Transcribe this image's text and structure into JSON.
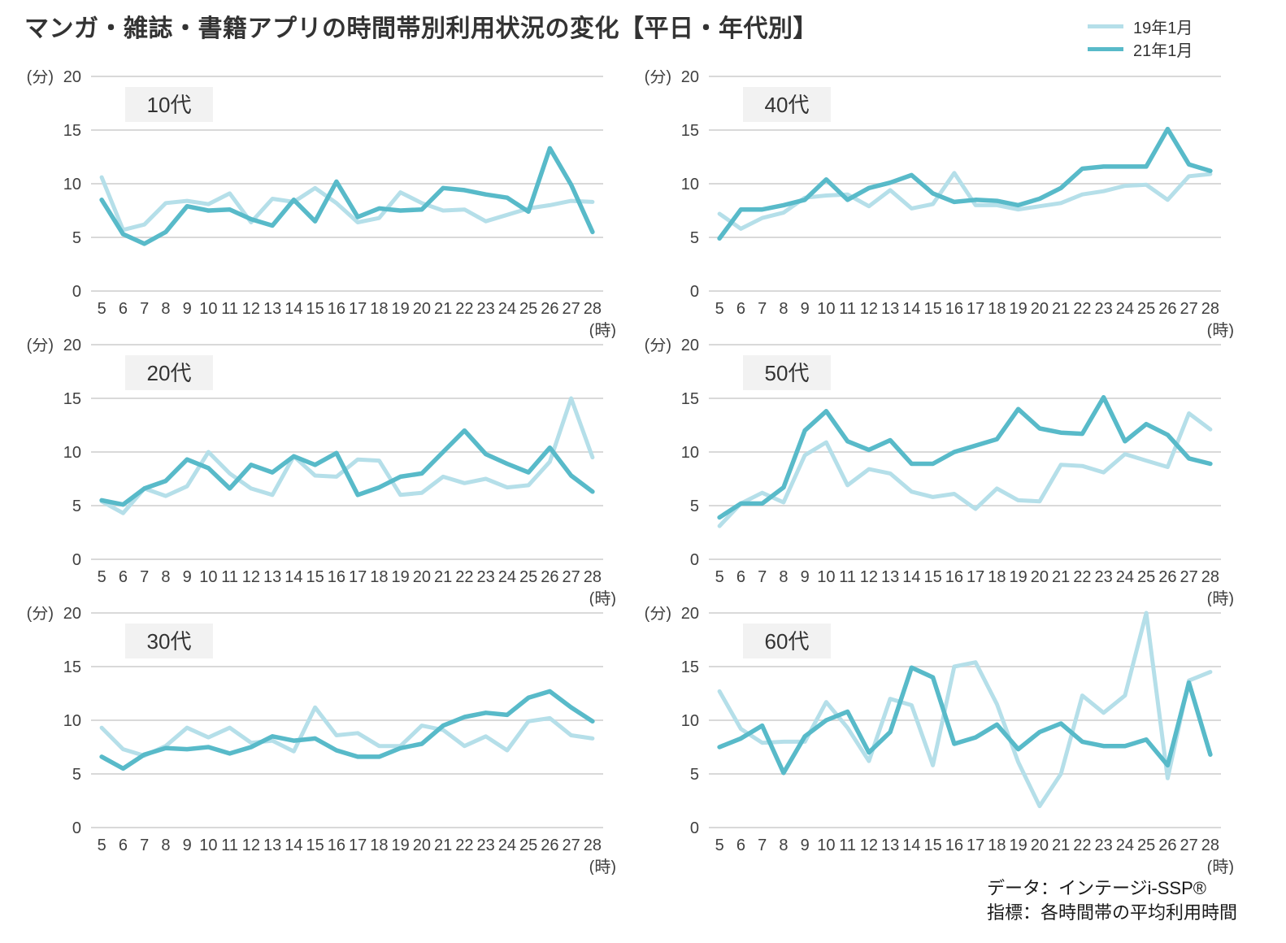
{
  "title": "マンガ・雑誌・書籍アプリの時間帯別利用状況の変化【平日・年代別】",
  "legend": [
    {
      "label": "19年1月",
      "color": "#b5dfe9"
    },
    {
      "label": "21年1月",
      "color": "#58bac9"
    }
  ],
  "footer": {
    "line1": "データ：インテージi-SSP®",
    "line2": "指標：各時間帯の平均利用時間"
  },
  "axes": {
    "y_unit": "(分)",
    "x_unit": "(時)",
    "ylim": [
      0,
      20
    ],
    "yticks": [
      0,
      5,
      10,
      15,
      20
    ],
    "x": [
      5,
      6,
      7,
      8,
      9,
      10,
      11,
      12,
      13,
      14,
      15,
      16,
      17,
      18,
      19,
      20,
      21,
      22,
      23,
      24,
      25,
      26,
      27,
      28
    ],
    "grid": true,
    "gridline_color": "#d9d9d9",
    "tick_color": "#404040"
  },
  "chart_data": [
    {
      "type": "line",
      "title": "10代",
      "x": [
        5,
        6,
        7,
        8,
        9,
        10,
        11,
        12,
        13,
        14,
        15,
        16,
        17,
        18,
        19,
        20,
        21,
        22,
        23,
        24,
        25,
        26,
        27,
        28
      ],
      "series": [
        {
          "name": "19年1月",
          "values": [
            10.6,
            5.7,
            6.2,
            8.2,
            8.4,
            8.1,
            9.1,
            6.4,
            8.6,
            8.3,
            9.6,
            8.2,
            6.4,
            6.8,
            9.2,
            8.2,
            7.5,
            7.6,
            6.5,
            7.1,
            7.7,
            8.0,
            8.4,
            8.3
          ]
        },
        {
          "name": "21年1月",
          "values": [
            8.5,
            5.3,
            4.4,
            5.5,
            7.9,
            7.5,
            7.6,
            6.7,
            6.1,
            8.5,
            6.5,
            10.2,
            6.9,
            7.7,
            7.5,
            7.6,
            9.6,
            9.4,
            9.0,
            8.7,
            7.4,
            13.3,
            9.9,
            5.5
          ]
        }
      ]
    },
    {
      "type": "line",
      "title": "40代",
      "x": [
        5,
        6,
        7,
        8,
        9,
        10,
        11,
        12,
        13,
        14,
        15,
        16,
        17,
        18,
        19,
        20,
        21,
        22,
        23,
        24,
        25,
        26,
        27,
        28
      ],
      "series": [
        {
          "name": "19年1月",
          "values": [
            7.2,
            5.8,
            6.8,
            7.3,
            8.7,
            8.9,
            9.0,
            7.9,
            9.4,
            7.7,
            8.1,
            11.0,
            8.0,
            8.0,
            7.6,
            7.9,
            8.2,
            9.0,
            9.3,
            9.8,
            9.9,
            8.5,
            10.7,
            10.9
          ]
        },
        {
          "name": "21年1月",
          "values": [
            4.9,
            7.6,
            7.6,
            8.0,
            8.5,
            10.4,
            8.5,
            9.6,
            10.1,
            10.8,
            9.1,
            8.3,
            8.5,
            8.4,
            8.0,
            8.6,
            9.6,
            11.4,
            11.6,
            11.6,
            11.6,
            15.1,
            11.8,
            11.2
          ]
        }
      ]
    },
    {
      "type": "line",
      "title": "20代",
      "x": [
        5,
        6,
        7,
        8,
        9,
        10,
        11,
        12,
        13,
        14,
        15,
        16,
        17,
        18,
        19,
        20,
        21,
        22,
        23,
        24,
        25,
        26,
        27,
        28
      ],
      "series": [
        {
          "name": "19年1月",
          "values": [
            5.4,
            4.3,
            6.6,
            5.9,
            6.8,
            10.0,
            8.0,
            6.6,
            6.0,
            9.6,
            7.8,
            7.7,
            9.3,
            9.2,
            6.0,
            6.2,
            7.7,
            7.1,
            7.5,
            6.7,
            6.9,
            9.1,
            15.0,
            9.5
          ]
        },
        {
          "name": "21年1月",
          "values": [
            5.5,
            5.1,
            6.6,
            7.3,
            9.3,
            8.5,
            6.6,
            8.8,
            8.1,
            9.6,
            8.8,
            9.9,
            6.0,
            6.7,
            7.7,
            8.0,
            10.0,
            12.0,
            9.8,
            8.9,
            8.1,
            10.4,
            7.8,
            6.3
          ]
        }
      ]
    },
    {
      "type": "line",
      "title": "50代",
      "x": [
        5,
        6,
        7,
        8,
        9,
        10,
        11,
        12,
        13,
        14,
        15,
        16,
        17,
        18,
        19,
        20,
        21,
        22,
        23,
        24,
        25,
        26,
        27,
        28
      ],
      "series": [
        {
          "name": "19年1月",
          "values": [
            3.1,
            5.2,
            6.2,
            5.3,
            9.7,
            10.9,
            6.9,
            8.4,
            8.0,
            6.3,
            5.8,
            6.1,
            4.7,
            6.6,
            5.5,
            5.4,
            8.8,
            8.7,
            8.1,
            9.8,
            9.2,
            8.6,
            13.6,
            12.1
          ]
        },
        {
          "name": "21年1月",
          "values": [
            3.9,
            5.2,
            5.2,
            6.7,
            12.0,
            13.8,
            11.0,
            10.2,
            11.1,
            8.9,
            8.9,
            10.0,
            10.6,
            11.2,
            14.0,
            12.2,
            11.8,
            11.7,
            15.1,
            11.0,
            12.6,
            11.6,
            9.4,
            8.9
          ]
        }
      ]
    },
    {
      "type": "line",
      "title": "30代",
      "x": [
        5,
        6,
        7,
        8,
        9,
        10,
        11,
        12,
        13,
        14,
        15,
        16,
        17,
        18,
        19,
        20,
        21,
        22,
        23,
        24,
        25,
        26,
        27,
        28
      ],
      "series": [
        {
          "name": "19年1月",
          "values": [
            9.3,
            7.3,
            6.7,
            7.6,
            9.3,
            8.4,
            9.3,
            7.9,
            8.1,
            7.1,
            11.2,
            8.6,
            8.8,
            7.6,
            7.6,
            9.5,
            9.1,
            7.6,
            8.5,
            7.2,
            9.9,
            10.2,
            8.6,
            8.3
          ]
        },
        {
          "name": "21年1月",
          "values": [
            6.6,
            5.5,
            6.8,
            7.4,
            7.3,
            7.5,
            6.9,
            7.5,
            8.5,
            8.1,
            8.3,
            7.2,
            6.6,
            6.6,
            7.4,
            7.8,
            9.5,
            10.3,
            10.7,
            10.5,
            12.1,
            12.7,
            11.2,
            9.9
          ]
        }
      ]
    },
    {
      "type": "line",
      "title": "60代",
      "x": [
        5,
        6,
        7,
        8,
        9,
        10,
        11,
        12,
        13,
        14,
        15,
        16,
        17,
        18,
        19,
        20,
        21,
        22,
        23,
        24,
        25,
        26,
        27,
        28
      ],
      "series": [
        {
          "name": "19年1月",
          "values": [
            12.7,
            9.2,
            7.9,
            8.0,
            8.0,
            11.7,
            9.3,
            6.2,
            12.0,
            11.4,
            5.8,
            15.0,
            15.4,
            11.5,
            6.1,
            2.0,
            5.0,
            12.3,
            10.7,
            12.3,
            20.0,
            4.6,
            13.7,
            14.5
          ]
        },
        {
          "name": "21年1月",
          "values": [
            7.5,
            8.3,
            9.5,
            5.1,
            8.5,
            10.0,
            10.8,
            7.0,
            8.9,
            14.9,
            14.0,
            7.8,
            8.4,
            9.6,
            7.3,
            8.9,
            9.7,
            8.0,
            7.6,
            7.6,
            8.2,
            5.8,
            13.5,
            6.8
          ]
        }
      ]
    }
  ]
}
